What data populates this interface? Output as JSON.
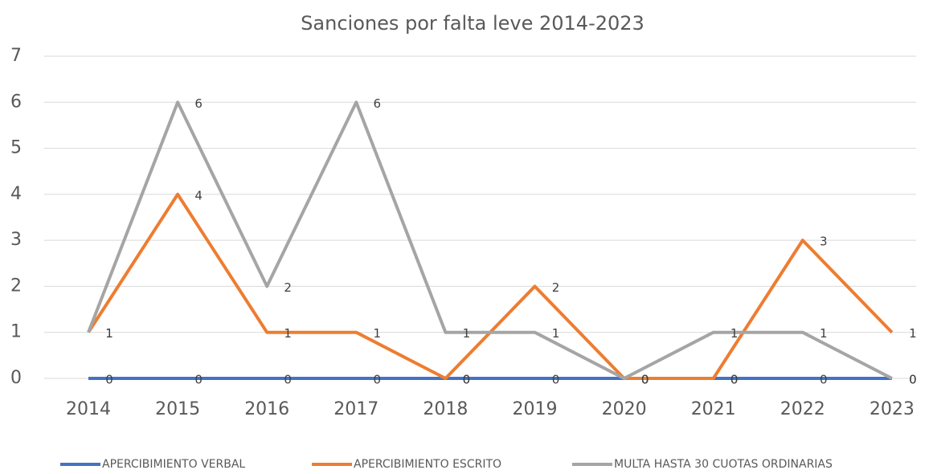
{
  "chart_data": {
    "type": "line",
    "title": "Sanciones por falta leve 2014-2023",
    "categories": [
      "2014",
      "2015",
      "2016",
      "2017",
      "2018",
      "2019",
      "2020",
      "2021",
      "2022",
      "2023"
    ],
    "series": [
      {
        "name": "APERCIBIMIENTO VERBAL",
        "color": "#4472c4",
        "values": [
          0,
          0,
          0,
          0,
          0,
          0,
          0,
          0,
          0,
          0
        ]
      },
      {
        "name": "APERCIBIMIENTO ESCRITO",
        "color": "#ed7d31",
        "values": [
          1,
          4,
          1,
          1,
          0,
          2,
          0,
          0,
          3,
          1
        ]
      },
      {
        "name": "MULTA HASTA 30 CUOTAS ORDINARIAS",
        "color": "#a5a5a5",
        "values": [
          1,
          6,
          2,
          6,
          1,
          1,
          0,
          1,
          1,
          0
        ]
      }
    ],
    "ylim": [
      0,
      7
    ],
    "yticks": [
      0,
      1,
      2,
      3,
      4,
      5,
      6,
      7
    ],
    "grid": true,
    "legend": "bottom"
  }
}
